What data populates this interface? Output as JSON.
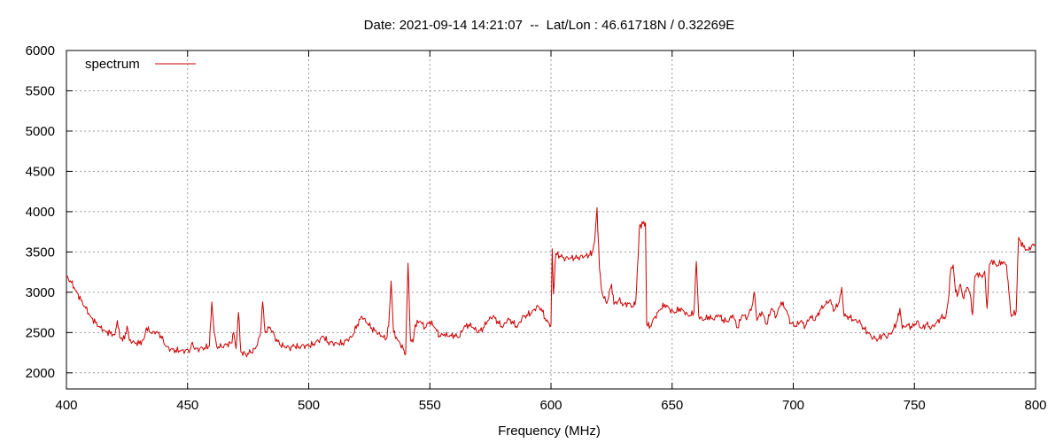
{
  "chart_data": {
    "type": "line",
    "title": "Date: 2021-09-14 14:21:07  --  Lat/Lon : 46.61718N / 0.32269E",
    "xlabel": "Frequency (MHz)",
    "ylabel": "",
    "xlim": [
      400,
      800
    ],
    "ylim": [
      1800,
      6000
    ],
    "xticks": [
      400,
      450,
      500,
      550,
      600,
      650,
      700,
      750,
      800
    ],
    "yticks": [
      2000,
      2500,
      3000,
      3500,
      4000,
      4500,
      5000,
      5500,
      6000
    ],
    "grid": true,
    "legend_position": "top-left",
    "series": [
      {
        "name": "spectrum",
        "color": "#cc0000",
        "points": [
          [
            400,
            3200
          ],
          [
            402,
            3120
          ],
          [
            404,
            3020
          ],
          [
            406,
            2900
          ],
          [
            408,
            2800
          ],
          [
            410,
            2700
          ],
          [
            412,
            2620
          ],
          [
            414,
            2560
          ],
          [
            416,
            2520
          ],
          [
            418,
            2490
          ],
          [
            420,
            2470
          ],
          [
            421,
            2650
          ],
          [
            422,
            2440
          ],
          [
            424,
            2420
          ],
          [
            425,
            2580
          ],
          [
            426,
            2400
          ],
          [
            428,
            2380
          ],
          [
            430,
            2360
          ],
          [
            432,
            2420
          ],
          [
            433,
            2560
          ],
          [
            435,
            2490
          ],
          [
            437,
            2510
          ],
          [
            439,
            2460
          ],
          [
            440,
            2400
          ],
          [
            441,
            2330
          ],
          [
            443,
            2290
          ],
          [
            445,
            2280
          ],
          [
            447,
            2270
          ],
          [
            449,
            2275
          ],
          [
            451,
            2280
          ],
          [
            452,
            2380
          ],
          [
            453,
            2290
          ],
          [
            455,
            2300
          ],
          [
            457,
            2310
          ],
          [
            459,
            2330
          ],
          [
            460,
            2880
          ],
          [
            461,
            2500
          ],
          [
            462,
            2330
          ],
          [
            464,
            2320
          ],
          [
            466,
            2350
          ],
          [
            468,
            2370
          ],
          [
            469,
            2500
          ],
          [
            470,
            2300
          ],
          [
            471,
            2750
          ],
          [
            472,
            2260
          ],
          [
            474,
            2230
          ],
          [
            476,
            2250
          ],
          [
            478,
            2300
          ],
          [
            480,
            2470
          ],
          [
            481,
            2880
          ],
          [
            482,
            2500
          ],
          [
            484,
            2570
          ],
          [
            486,
            2450
          ],
          [
            488,
            2350
          ],
          [
            490,
            2330
          ],
          [
            492,
            2310
          ],
          [
            494,
            2330
          ],
          [
            496,
            2320
          ],
          [
            498,
            2340
          ],
          [
            500,
            2330
          ],
          [
            502,
            2360
          ],
          [
            504,
            2400
          ],
          [
            506,
            2450
          ],
          [
            508,
            2380
          ],
          [
            510,
            2370
          ],
          [
            512,
            2360
          ],
          [
            514,
            2370
          ],
          [
            516,
            2410
          ],
          [
            518,
            2450
          ],
          [
            520,
            2600
          ],
          [
            522,
            2700
          ],
          [
            524,
            2620
          ],
          [
            526,
            2560
          ],
          [
            528,
            2500
          ],
          [
            530,
            2460
          ],
          [
            532,
            2420
          ],
          [
            533,
            2580
          ],
          [
            534,
            3140
          ],
          [
            535,
            2500
          ],
          [
            537,
            2400
          ],
          [
            539,
            2300
          ],
          [
            540,
            2230
          ],
          [
            541,
            3360
          ],
          [
            542,
            2400
          ],
          [
            543,
            2380
          ],
          [
            544,
            2600
          ],
          [
            546,
            2640
          ],
          [
            548,
            2560
          ],
          [
            550,
            2640
          ],
          [
            552,
            2560
          ],
          [
            554,
            2460
          ],
          [
            556,
            2480
          ],
          [
            558,
            2450
          ],
          [
            560,
            2470
          ],
          [
            562,
            2440
          ],
          [
            564,
            2560
          ],
          [
            566,
            2600
          ],
          [
            568,
            2560
          ],
          [
            570,
            2500
          ],
          [
            572,
            2560
          ],
          [
            574,
            2650
          ],
          [
            576,
            2700
          ],
          [
            578,
            2640
          ],
          [
            580,
            2560
          ],
          [
            582,
            2660
          ],
          [
            584,
            2640
          ],
          [
            586,
            2560
          ],
          [
            588,
            2680
          ],
          [
            590,
            2720
          ],
          [
            592,
            2740
          ],
          [
            594,
            2820
          ],
          [
            596,
            2800
          ],
          [
            598,
            2640
          ],
          [
            600,
            2600
          ],
          [
            600.5,
            3540
          ],
          [
            601,
            2980
          ],
          [
            602,
            3480
          ],
          [
            604,
            3440
          ],
          [
            606,
            3420
          ],
          [
            608,
            3430
          ],
          [
            610,
            3420
          ],
          [
            612,
            3440
          ],
          [
            614,
            3450
          ],
          [
            616,
            3460
          ],
          [
            617,
            3500
          ],
          [
            618,
            3620
          ],
          [
            619,
            4050
          ],
          [
            620,
            3300
          ],
          [
            621,
            3000
          ],
          [
            623,
            2860
          ],
          [
            625,
            3100
          ],
          [
            626,
            2850
          ],
          [
            628,
            2900
          ],
          [
            630,
            2850
          ],
          [
            632,
            2860
          ],
          [
            634,
            2820
          ],
          [
            635,
            2900
          ],
          [
            636,
            3450
          ],
          [
            636.5,
            3820
          ],
          [
            638,
            3850
          ],
          [
            639,
            3860
          ],
          [
            639.5,
            2600
          ],
          [
            641,
            2580
          ],
          [
            643,
            2700
          ],
          [
            645,
            2780
          ],
          [
            647,
            2850
          ],
          [
            649,
            2790
          ],
          [
            651,
            2740
          ],
          [
            653,
            2800
          ],
          [
            655,
            2760
          ],
          [
            657,
            2700
          ],
          [
            659,
            2750
          ],
          [
            660,
            3380
          ],
          [
            661,
            2700
          ],
          [
            663,
            2650
          ],
          [
            665,
            2700
          ],
          [
            667,
            2660
          ],
          [
            669,
            2720
          ],
          [
            671,
            2660
          ],
          [
            673,
            2630
          ],
          [
            675,
            2720
          ],
          [
            677,
            2560
          ],
          [
            679,
            2720
          ],
          [
            681,
            2680
          ],
          [
            683,
            2830
          ],
          [
            684,
            3000
          ],
          [
            685,
            2650
          ],
          [
            687,
            2760
          ],
          [
            689,
            2600
          ],
          [
            691,
            2800
          ],
          [
            693,
            2700
          ],
          [
            695,
            2880
          ],
          [
            697,
            2780
          ],
          [
            699,
            2620
          ],
          [
            701,
            2580
          ],
          [
            703,
            2640
          ],
          [
            705,
            2580
          ],
          [
            707,
            2700
          ],
          [
            709,
            2650
          ],
          [
            711,
            2780
          ],
          [
            713,
            2840
          ],
          [
            715,
            2900
          ],
          [
            717,
            2780
          ],
          [
            719,
            2880
          ],
          [
            720,
            3060
          ],
          [
            721,
            2700
          ],
          [
            723,
            2700
          ],
          [
            725,
            2650
          ],
          [
            727,
            2640
          ],
          [
            729,
            2560
          ],
          [
            731,
            2490
          ],
          [
            733,
            2430
          ],
          [
            735,
            2420
          ],
          [
            737,
            2470
          ],
          [
            739,
            2450
          ],
          [
            741,
            2520
          ],
          [
            743,
            2650
          ],
          [
            744,
            2800
          ],
          [
            745,
            2550
          ],
          [
            747,
            2600
          ],
          [
            749,
            2560
          ],
          [
            751,
            2640
          ],
          [
            753,
            2550
          ],
          [
            755,
            2600
          ],
          [
            757,
            2560
          ],
          [
            759,
            2620
          ],
          [
            761,
            2680
          ],
          [
            763,
            2700
          ],
          [
            764,
            2900
          ],
          [
            765,
            3280
          ],
          [
            766,
            3340
          ],
          [
            767,
            3000
          ],
          [
            768,
            2980
          ],
          [
            769,
            3100
          ],
          [
            770,
            2940
          ],
          [
            772,
            3060
          ],
          [
            773,
            2980
          ],
          [
            774,
            2720
          ],
          [
            775,
            3200
          ],
          [
            776,
            3240
          ],
          [
            778,
            3180
          ],
          [
            779,
            3260
          ],
          [
            780,
            2800
          ],
          [
            781,
            3350
          ],
          [
            782,
            3400
          ],
          [
            784,
            3320
          ],
          [
            786,
            3380
          ],
          [
            788,
            3340
          ],
          [
            789,
            3000
          ],
          [
            790,
            2700
          ],
          [
            792,
            2760
          ],
          [
            793,
            3680
          ],
          [
            795,
            3560
          ],
          [
            797,
            3520
          ],
          [
            799,
            3600
          ],
          [
            800,
            3590
          ]
        ]
      }
    ]
  }
}
